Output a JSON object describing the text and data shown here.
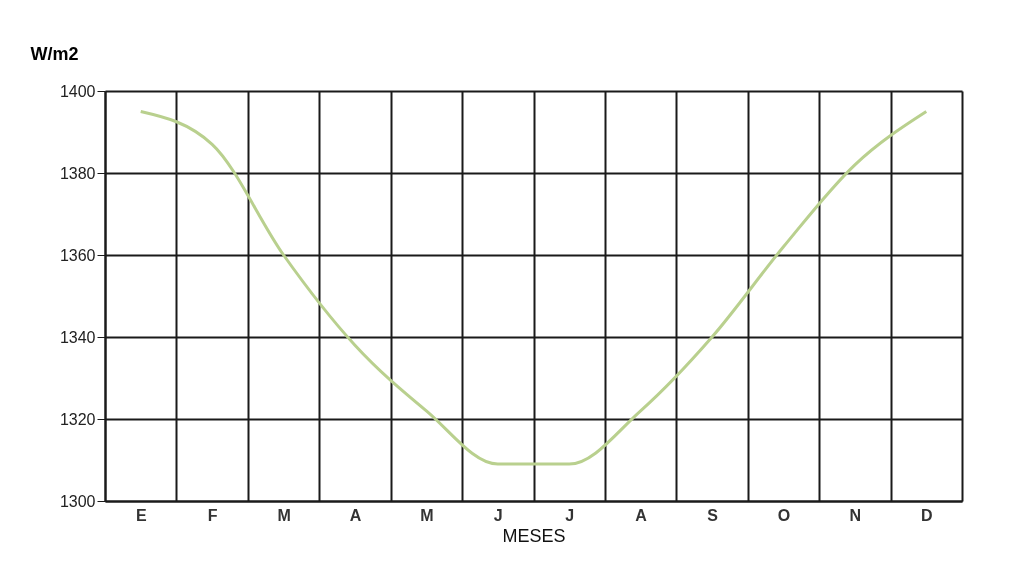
{
  "chart_data": {
    "type": "line",
    "xlabel": "MESES",
    "ylabel": "W/m2",
    "categories": [
      "E",
      "F",
      "M",
      "A",
      "M",
      "J",
      "J",
      "A",
      "S",
      "O",
      "N",
      "D"
    ],
    "series": [
      {
        "color": "#b9d08e",
        "values": [
          1395,
          1387,
          1360,
          1338,
          1322,
          1309,
          1309,
          1322,
          1340,
          1362,
          1382,
          1395
        ]
      }
    ],
    "ylim": [
      1300,
      1400
    ],
    "yticks": [
      1300,
      1320,
      1340,
      1360,
      1380,
      1400
    ],
    "grid": true,
    "marker": "none",
    "line_style": "solid"
  }
}
